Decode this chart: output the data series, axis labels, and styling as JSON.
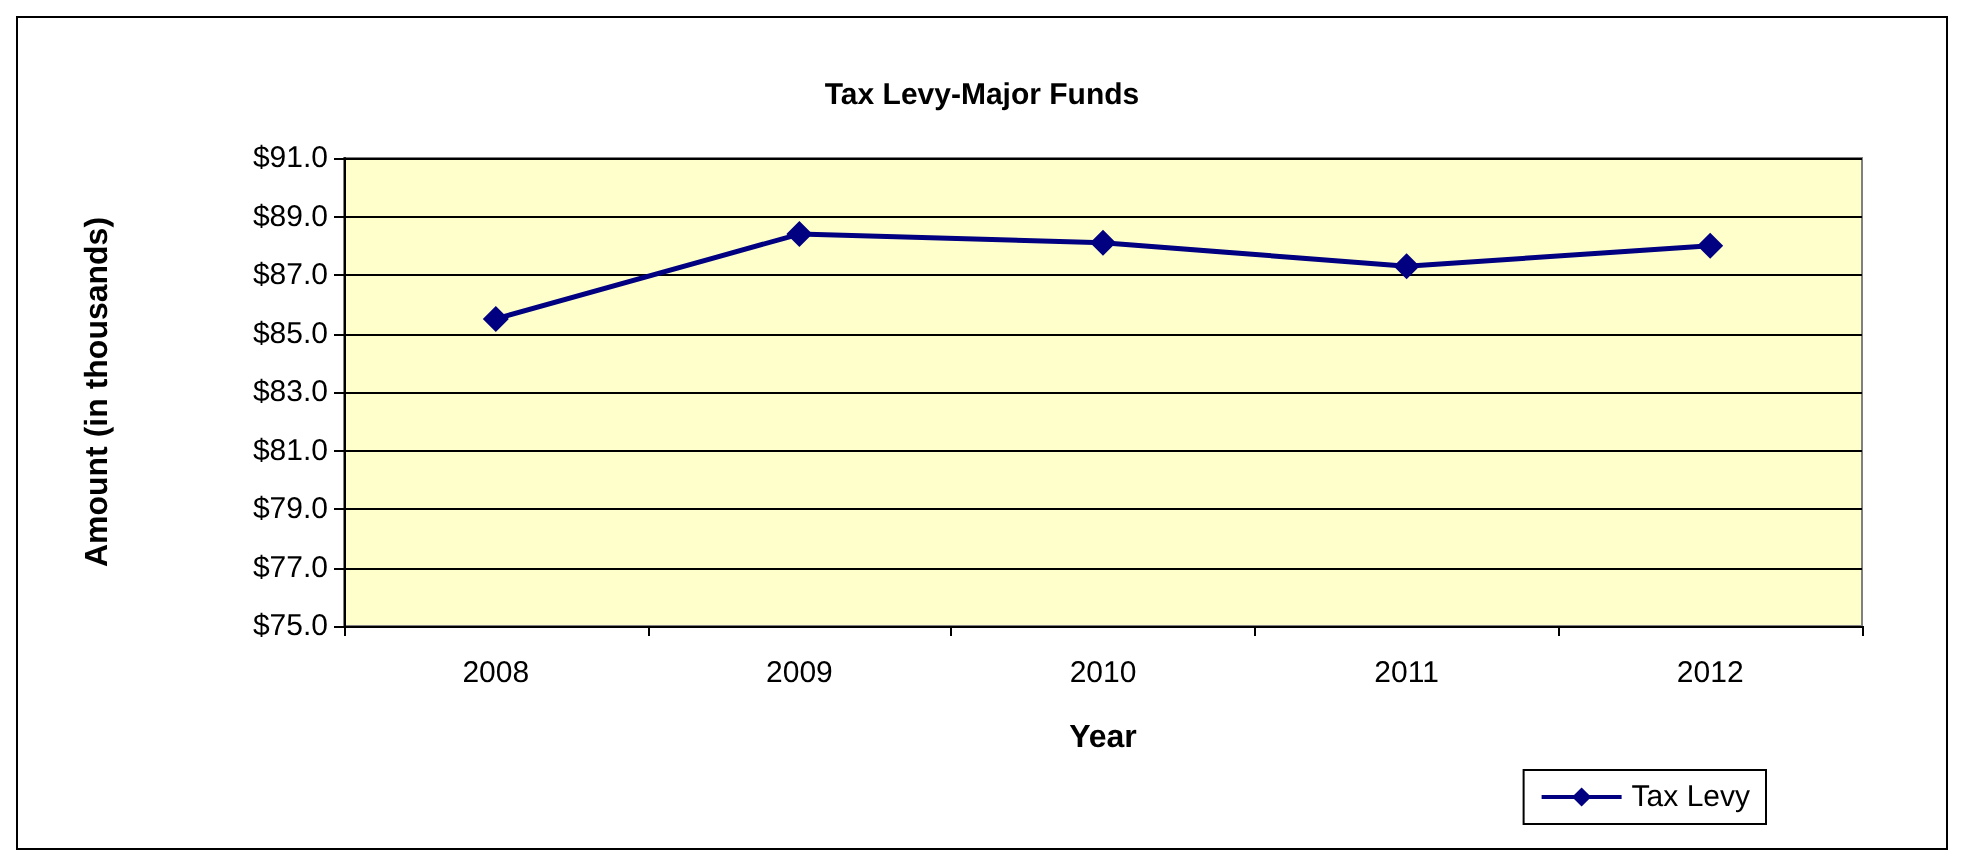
{
  "chart_data": {
    "type": "line",
    "title": "Tax Levy-Major Funds",
    "xlabel": "Year",
    "ylabel": "Amount (in thousands)",
    "categories": [
      "2008",
      "2009",
      "2010",
      "2011",
      "2012"
    ],
    "series": [
      {
        "name": "Tax Levy",
        "color": "#000080",
        "values": [
          85.5,
          88.4,
          88.1,
          87.3,
          88.0
        ]
      }
    ],
    "ylim": [
      75,
      91
    ],
    "yticks": [
      {
        "value": 75,
        "label": "$75.0"
      },
      {
        "value": 77,
        "label": "$77.0"
      },
      {
        "value": 79,
        "label": "$79.0"
      },
      {
        "value": 81,
        "label": "$81.0"
      },
      {
        "value": 83,
        "label": "$83.0"
      },
      {
        "value": 85,
        "label": "$85.0"
      },
      {
        "value": 87,
        "label": "$87.0"
      },
      {
        "value": 89,
        "label": "$89.0"
      },
      {
        "value": 91,
        "label": "$91.0"
      }
    ],
    "grid": "y",
    "legend": "bottom right",
    "marker": "diamond",
    "line_style": "solid"
  }
}
